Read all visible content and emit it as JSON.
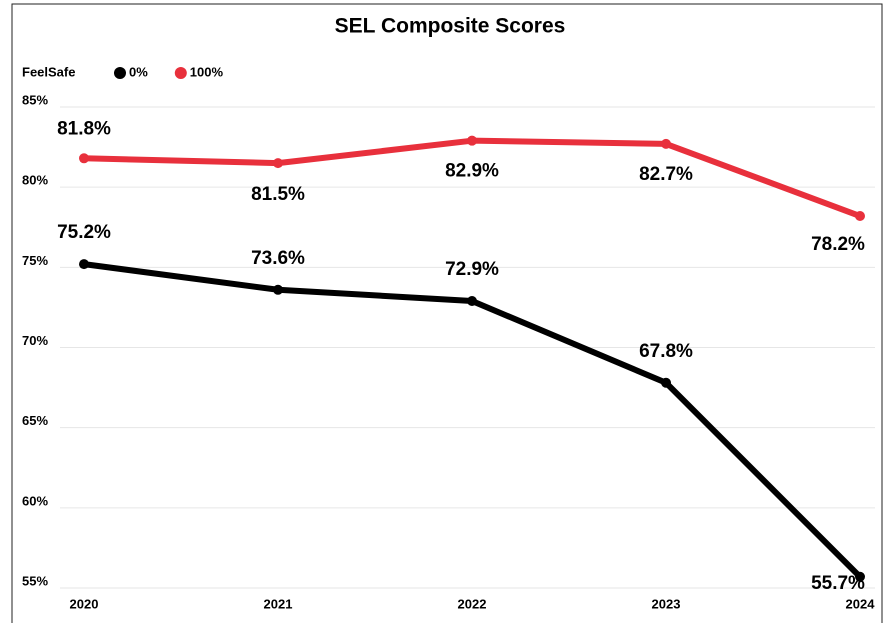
{
  "chart_data": {
    "type": "line",
    "title": "SEL Composite Scores",
    "legend_title": "FeelSafe",
    "categories": [
      "2020",
      "2021",
      "2022",
      "2023",
      "2024"
    ],
    "series": [
      {
        "name": "0%",
        "color": "#000000",
        "values": [
          75.2,
          73.6,
          72.9,
          67.8,
          55.7
        ],
        "value_labels": [
          "75.2%",
          "73.6%",
          "72.9%",
          "67.8%",
          "55.7%"
        ]
      },
      {
        "name": "100%",
        "color": "#e8303c",
        "values": [
          81.8,
          81.5,
          82.9,
          82.7,
          78.2
        ],
        "value_labels": [
          "81.8%",
          "81.5%",
          "82.9%",
          "82.7%",
          "78.2%"
        ]
      }
    ],
    "ylim": [
      55,
      85
    ],
    "yticks": [
      {
        "value": 55,
        "label": "55%"
      },
      {
        "value": 60,
        "label": "60%"
      },
      {
        "value": 65,
        "label": "65%"
      },
      {
        "value": 70,
        "label": "70%"
      },
      {
        "value": 75,
        "label": "75%"
      },
      {
        "value": 80,
        "label": "80%"
      },
      {
        "value": 85,
        "label": "85%"
      }
    ],
    "grid": true,
    "legend": "top-left"
  }
}
